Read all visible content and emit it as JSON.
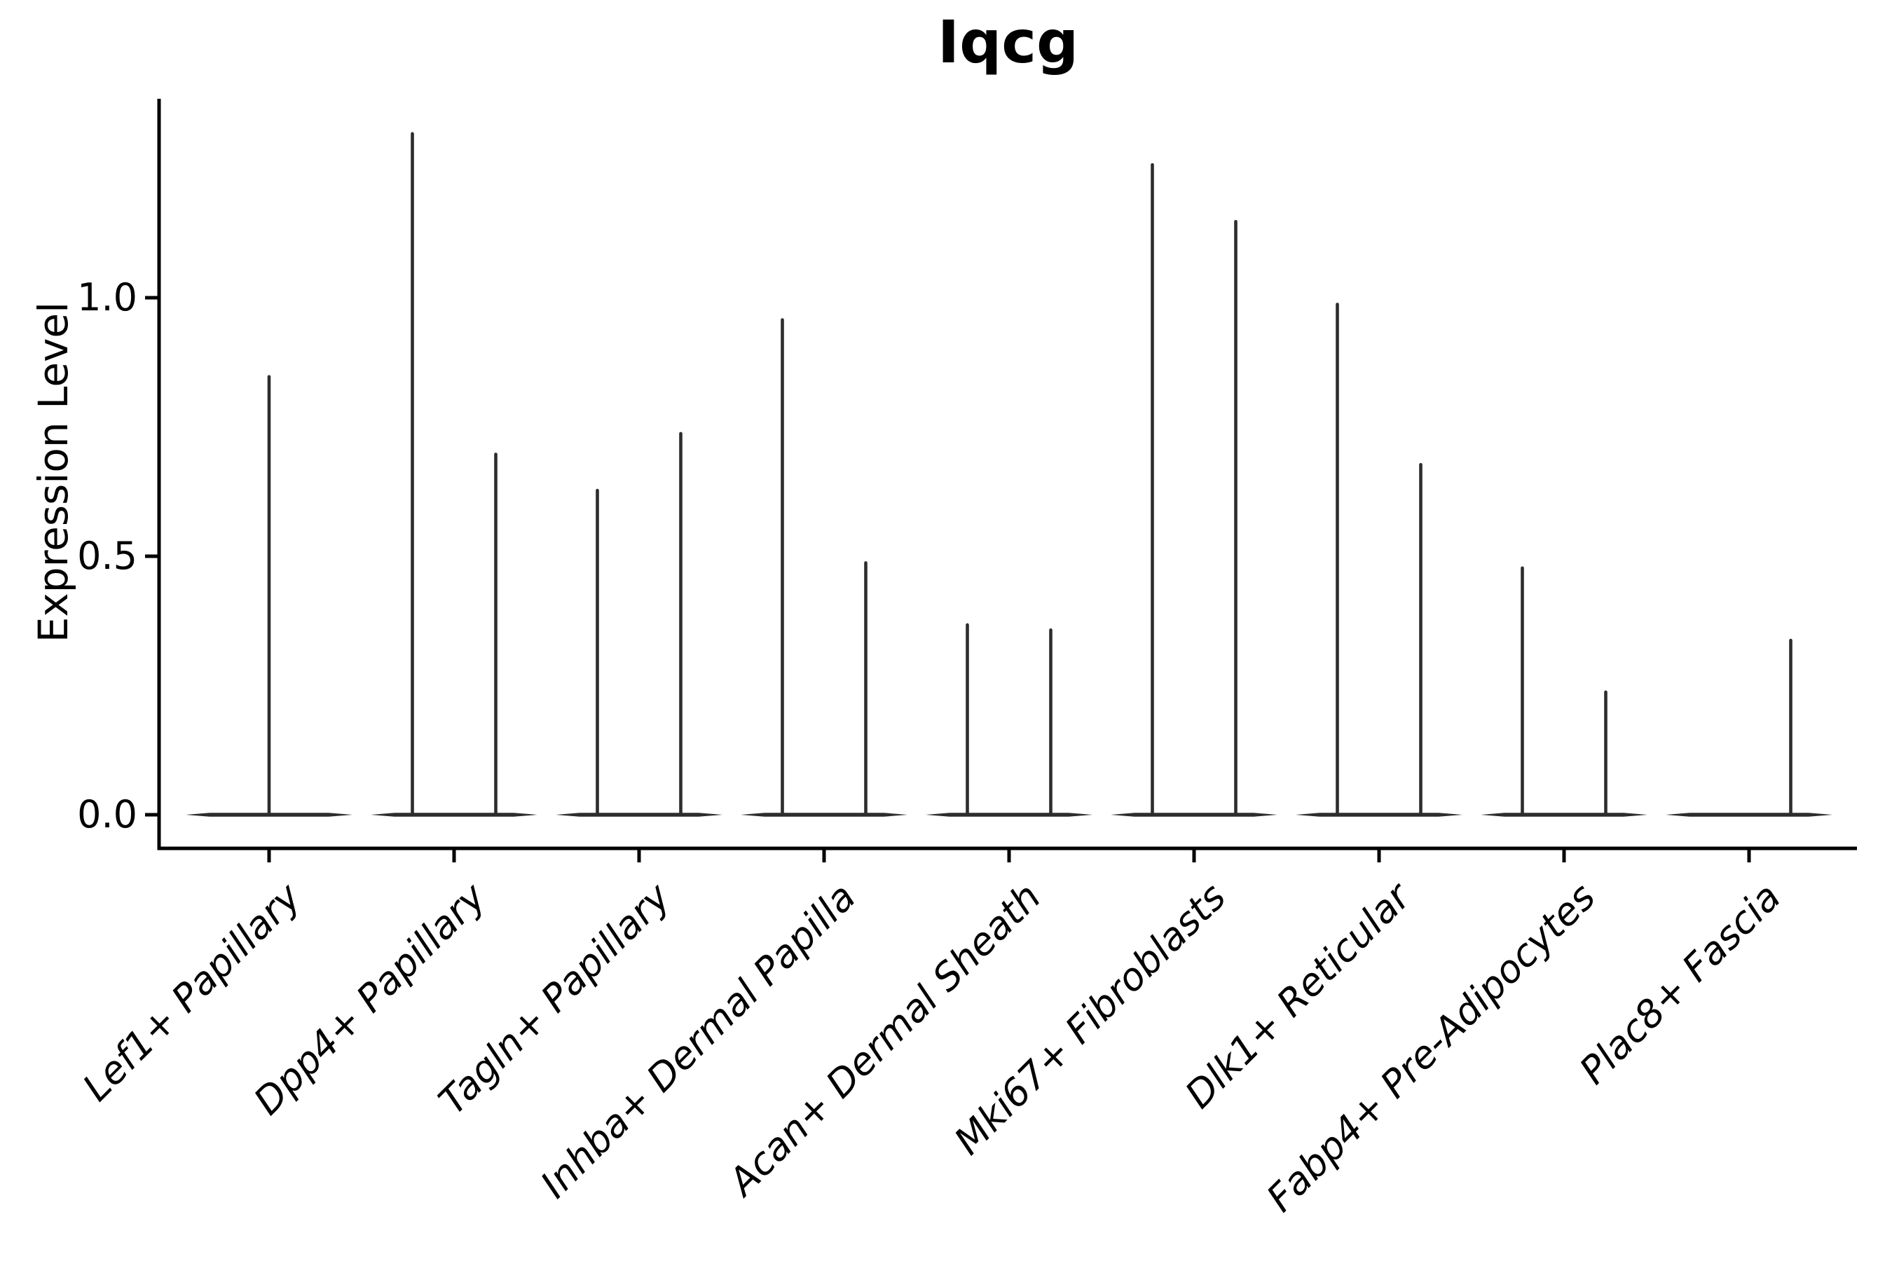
{
  "chart_data": {
    "type": "violin",
    "title": "Iqcg",
    "ylabel": "Expression Level",
    "xlabel": "",
    "ylim": [
      -0.065,
      1.385
    ],
    "yticks": [
      0,
      0.5,
      1.0
    ],
    "ytick_labels": [
      "0.0",
      "0.5",
      "1.0"
    ],
    "grid": false,
    "legend": "none",
    "background_color": "#ffffff",
    "violin_color": "#2d2d2d",
    "axis_color": "#000000",
    "categories": [
      "Lef1+ Papillary",
      "Dpp4+ Papillary",
      "Tagln+ Papillary",
      "Inhba+ Dermal Papilla",
      "Acan+ Dermal Sheath",
      "Mki67+ Fibroblasts",
      "Dlk1+ Reticular",
      "Fabp4+ Pre-Adipocytes",
      "Plac8+ Fascia"
    ],
    "note": "Each violin is extremely thin: nearly all cells at expression 0 (flat horizontal baseline across the category) with a needle-like tail rising to the max expression value. Most categories contain two dodged violins (left/right); Lef1+ Papillary has a single centered spike and Plac8+ Fascia has a spike only at the right position.",
    "violins": [
      {
        "category": "Lef1+ Papillary",
        "spikes": [
          {
            "group": "center",
            "max": 0.85
          }
        ]
      },
      {
        "category": "Dpp4+ Papillary",
        "spikes": [
          {
            "group": "left",
            "max": 1.32
          },
          {
            "group": "right",
            "max": 0.7
          }
        ]
      },
      {
        "category": "Tagln+ Papillary",
        "spikes": [
          {
            "group": "left",
            "max": 0.63
          },
          {
            "group": "right",
            "max": 0.74
          }
        ]
      },
      {
        "category": "Inhba+ Dermal Papilla",
        "spikes": [
          {
            "group": "left",
            "max": 0.96
          },
          {
            "group": "right",
            "max": 0.49
          }
        ]
      },
      {
        "category": "Acan+ Dermal Sheath",
        "spikes": [
          {
            "group": "left",
            "max": 0.37
          },
          {
            "group": "right",
            "max": 0.36
          }
        ]
      },
      {
        "category": "Mki67+ Fibroblasts",
        "spikes": [
          {
            "group": "left",
            "max": 1.26
          },
          {
            "group": "right",
            "max": 1.15
          }
        ]
      },
      {
        "category": "Dlk1+ Reticular",
        "spikes": [
          {
            "group": "left",
            "max": 0.99
          },
          {
            "group": "right",
            "max": 0.68
          }
        ]
      },
      {
        "category": "Fabp4+ Pre-Adipocytes",
        "spikes": [
          {
            "group": "left",
            "max": 0.48
          },
          {
            "group": "right",
            "max": 0.24
          }
        ]
      },
      {
        "category": "Plac8+ Fascia",
        "spikes": [
          {
            "group": "right",
            "max": 0.34
          }
        ]
      }
    ]
  }
}
